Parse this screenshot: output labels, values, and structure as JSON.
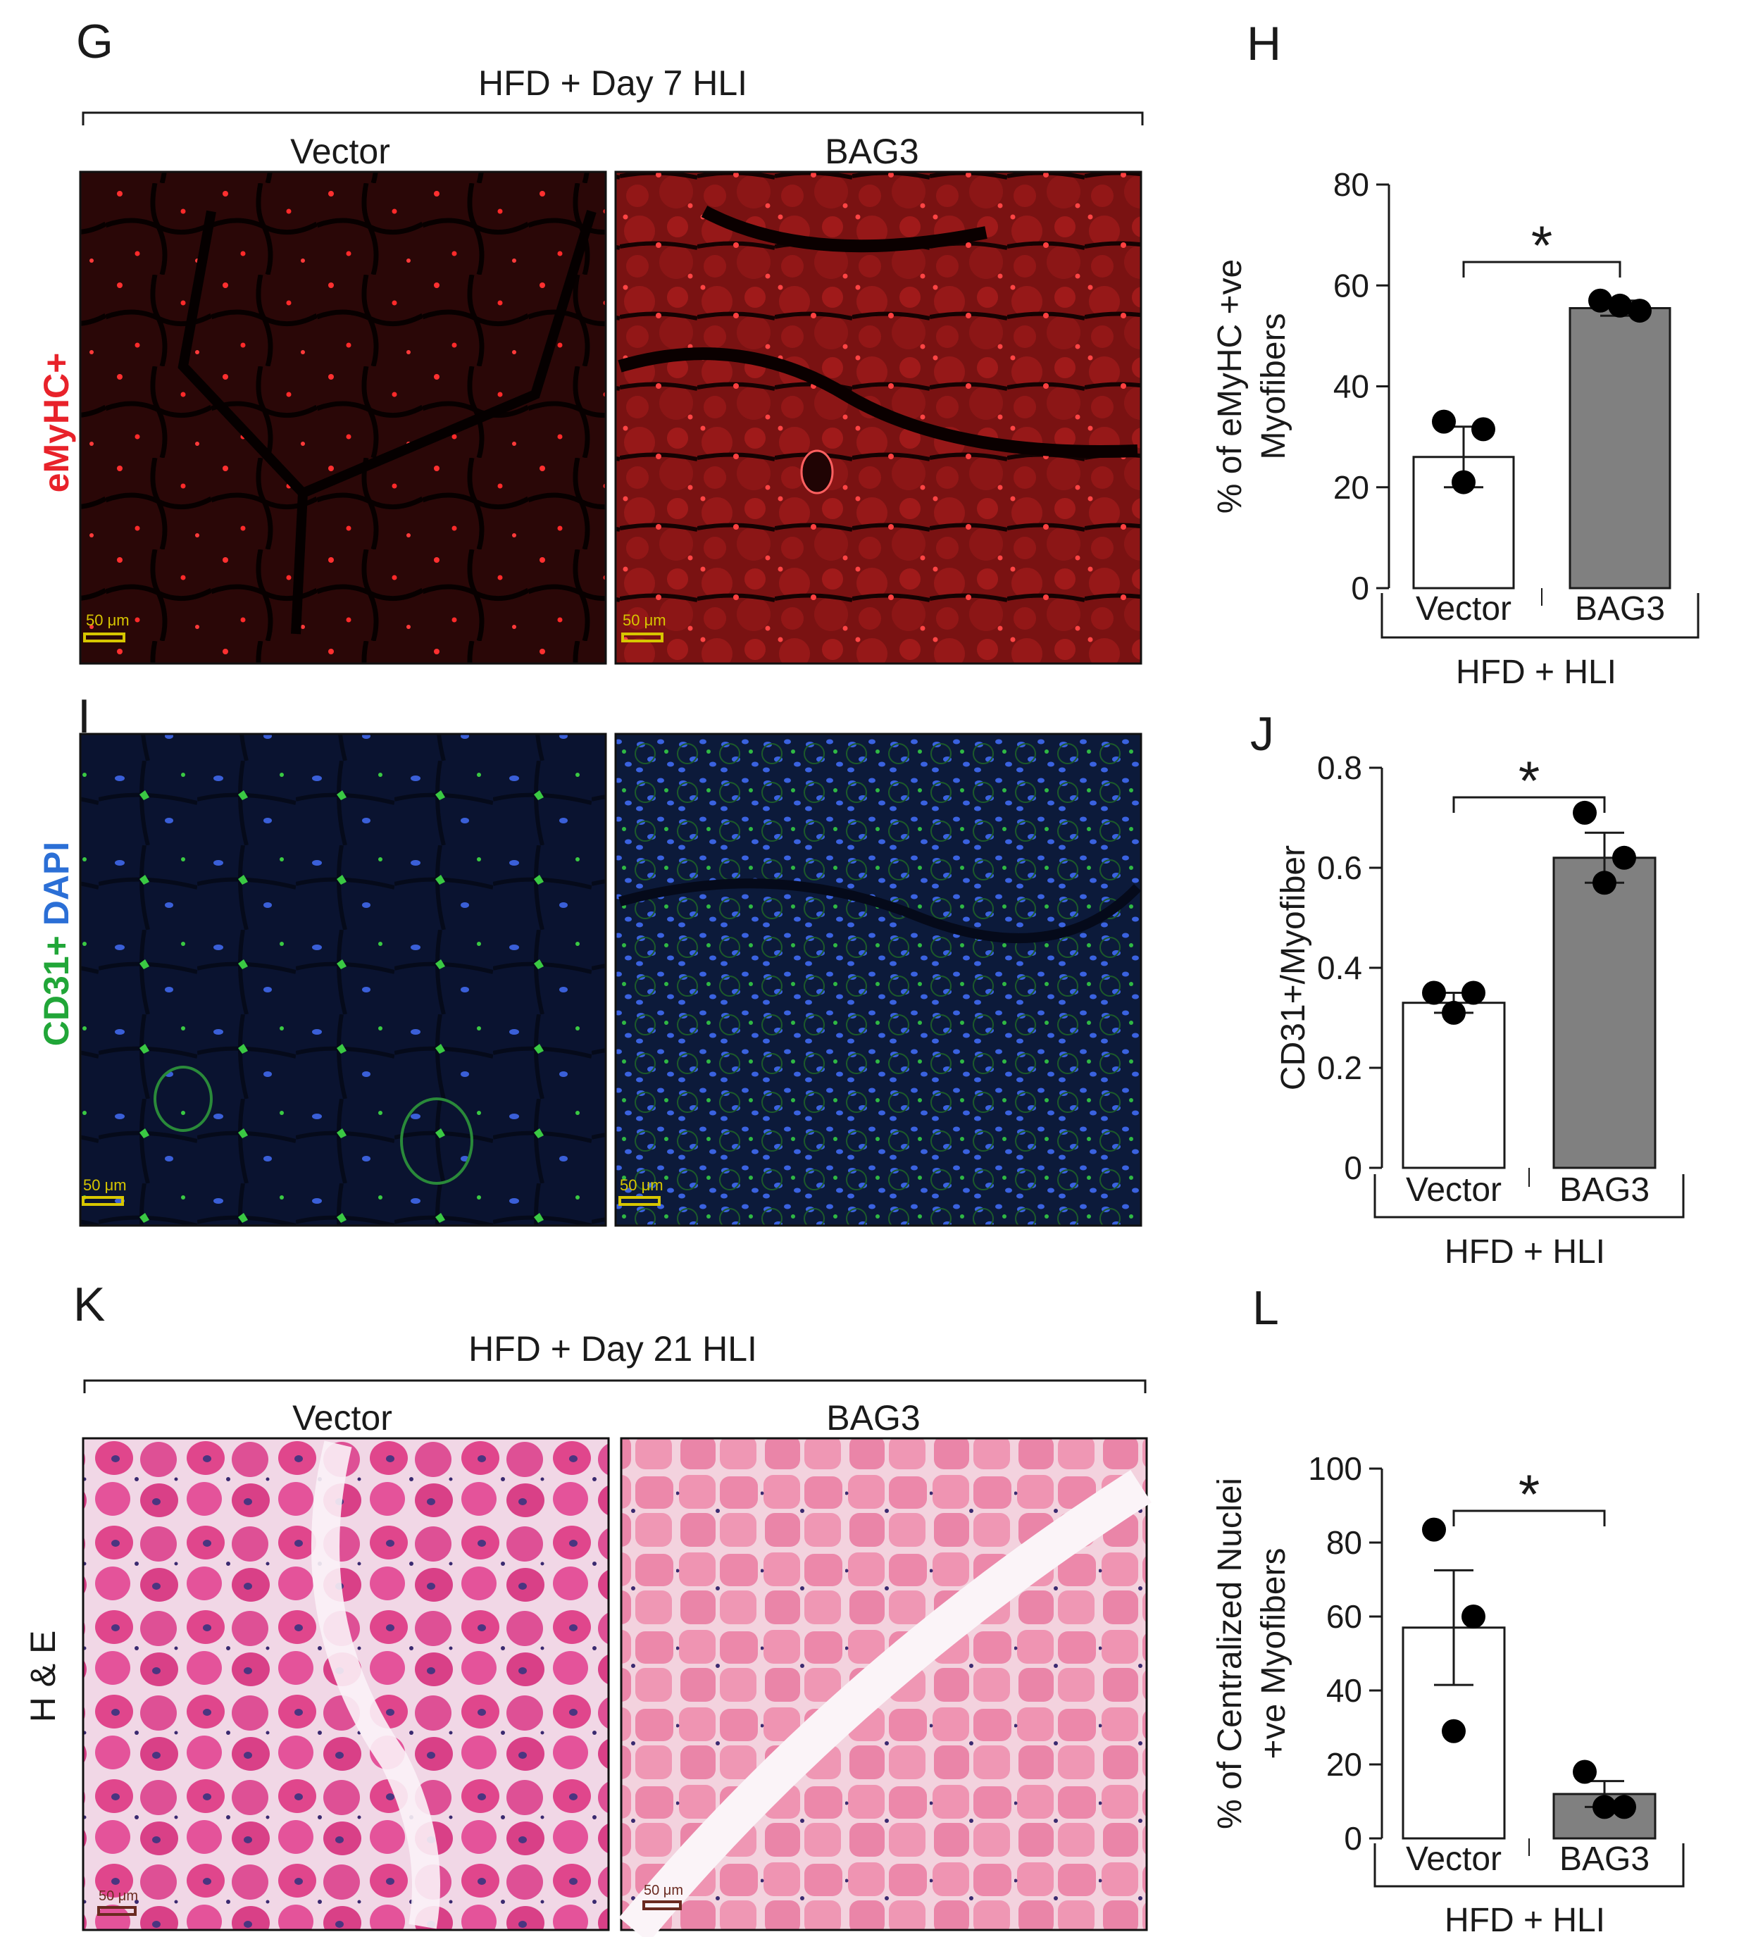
{
  "panels": {
    "G": {
      "letter": "G",
      "condition": "HFD + Day 7 HLI",
      "stain": "eMyHC+",
      "stain_color": "#e8222a",
      "groups": [
        "Vector",
        "BAG3"
      ],
      "scale_bar": [
        "50 μm",
        "50 μm"
      ]
    },
    "I": {
      "letter": "I",
      "stain_parts": [
        "CD31+",
        "DAPI"
      ],
      "stain_colors": [
        "#21a638",
        "#2b6fd6"
      ],
      "scale_bar": [
        "50 μm",
        "50 μm"
      ]
    },
    "K": {
      "letter": "K",
      "condition": "HFD + Day 21 HLI",
      "stain": "H & E",
      "groups": [
        "Vector",
        "BAG3"
      ],
      "scale_bar": [
        "50 μm",
        "50 μm"
      ]
    },
    "H": {
      "letter": "H"
    },
    "J": {
      "letter": "J"
    },
    "L": {
      "letter": "L"
    }
  },
  "chart_data": [
    {
      "panel": "H",
      "type": "bar",
      "categories": [
        "Vector",
        "BAG3"
      ],
      "values": [
        26,
        55.5
      ],
      "sem": [
        6,
        1.5
      ],
      "points": [
        [
          33,
          31.5,
          21
        ],
        [
          57,
          55,
          56
        ]
      ],
      "bar_colors": [
        "#ffffff",
        "#808080"
      ],
      "ylabel": [
        "% of eMyHC +ve",
        "Myofibers"
      ],
      "yticks": [
        "0",
        "20",
        "40",
        "60",
        "80"
      ],
      "ylim": [
        0,
        80
      ],
      "group_label": "HFD + HLI",
      "significance": "*"
    },
    {
      "panel": "J",
      "type": "bar",
      "categories": [
        "Vector",
        "BAG3"
      ],
      "values": [
        0.33,
        0.62
      ],
      "sem": [
        0.02,
        0.05
      ],
      "points": [
        [
          0.35,
          0.35,
          0.31
        ],
        [
          0.71,
          0.62,
          0.57
        ]
      ],
      "bar_colors": [
        "#ffffff",
        "#808080"
      ],
      "ylabel": [
        "CD31+/Myofiber"
      ],
      "yticks": [
        "0",
        "0.2",
        "0.4",
        "0.6",
        "0.8"
      ],
      "ylim": [
        0,
        0.8
      ],
      "group_label": "HFD + HLI",
      "significance": "*"
    },
    {
      "panel": "L",
      "type": "bar",
      "categories": [
        "Vector",
        "BAG3"
      ],
      "values": [
        57,
        12
      ],
      "sem": [
        15.5,
        3.5
      ],
      "points": [
        [
          83.5,
          60,
          29
        ],
        [
          18,
          8.5,
          8.5
        ]
      ],
      "bar_colors": [
        "#ffffff",
        "#808080"
      ],
      "ylabel": [
        "% of Centralized Nuclei",
        "+ve Myofibers"
      ],
      "yticks": [
        "0",
        "20",
        "40",
        "60",
        "80",
        "100"
      ],
      "ylim": [
        0,
        100
      ],
      "group_label": "HFD + HLI",
      "significance": "*"
    }
  ]
}
